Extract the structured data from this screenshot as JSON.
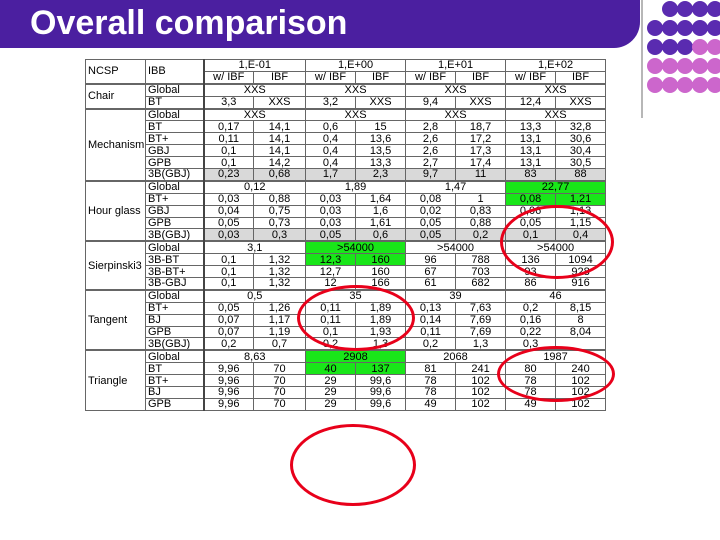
{
  "slide": {
    "title": "Overall comparison"
  },
  "colors": {
    "title_bar": "#4b1fa0",
    "green": "#19e619",
    "oval": "#e8001a",
    "dot_purple": "#5a2bb0",
    "dot_pink": "#cc66cc"
  },
  "table": {
    "h1": [
      "NCSP",
      "IBB",
      "1,E-01",
      "1,E+00",
      "1,E+01",
      "1,E+02"
    ],
    "h2": [
      "w/ IBF",
      "IBF",
      "w/ IBF",
      "IBF",
      "w/ IBF",
      "IBF",
      "w/ IBF",
      "IBF"
    ],
    "groups": [
      {
        "name": "Chair",
        "rows": [
          {
            "cells": [
              "Global",
              "XXS",
              "XXS",
              "XXS",
              "XXS"
            ]
          },
          {
            "cells": [
              "BT",
              "3,3",
              "XXS",
              "3,2",
              "XXS",
              "9,4",
              "XXS",
              "12,4",
              "XXS"
            ]
          }
        ]
      },
      {
        "name": "Mechanism",
        "rows": [
          {
            "cells": [
              "Global",
              "XXS",
              "XXS",
              "XXS",
              "XXS"
            ]
          },
          {
            "cells": [
              "BT",
              "0,17",
              "14,1",
              "0,6",
              "15",
              "2,8",
              "18,7",
              "13,3",
              "32,8"
            ]
          },
          {
            "cells": [
              "BT+",
              "0,11",
              "14,1",
              "0,4",
              "13,6",
              "2,6",
              "17,2",
              "13,1",
              "30,6"
            ]
          },
          {
            "cells": [
              "GBJ",
              "0,1",
              "14,1",
              "0,4",
              "13,5",
              "2,6",
              "17,3",
              "13,1",
              "30,4"
            ]
          },
          {
            "cells": [
              "GPB",
              "0,1",
              "14,2",
              "0,4",
              "13,3",
              "2,7",
              "17,4",
              "13,1",
              "30,5"
            ]
          },
          {
            "cells": [
              "3B(GBJ)",
              "0,23",
              "0,68",
              "1,7",
              "2,3",
              "9,7",
              "11",
              "83",
              "88"
            ]
          }
        ]
      },
      {
        "name": "Hour glass",
        "rows": [
          {
            "cells": [
              "Global",
              "0,12",
              "1,89",
              "1,47",
              "22,77"
            ]
          },
          {
            "cells": [
              "BT+",
              "0,03",
              "0,88",
              "0,03",
              "1,64",
              "0,08",
              "1",
              "0,08",
              "1,21"
            ]
          },
          {
            "cells": [
              "GBJ",
              "0,04",
              "0,75",
              "0,03",
              "1,6",
              "0,02",
              "0,83",
              "0,06",
              "1,13"
            ]
          },
          {
            "cells": [
              "GPB",
              "0,05",
              "0,73",
              "0,03",
              "1,61",
              "0,05",
              "0,88",
              "0,05",
              "1,15"
            ]
          },
          {
            "cells": [
              "3B(GBJ)",
              "0,03",
              "0,3",
              "0,05",
              "0,6",
              "0,05",
              "0,2",
              "0,1",
              "0,4"
            ]
          }
        ]
      },
      {
        "name": "Sierpinski3",
        "rows": [
          {
            "cells": [
              "Global",
              "3,1",
              ">54000",
              ">54000",
              ">54000"
            ]
          },
          {
            "cells": [
              "3B-BT",
              "0,1",
              "1,32",
              "12,3",
              "160",
              "96",
              "788",
              "136",
              "1094"
            ]
          },
          {
            "cells": [
              "3B-BT+",
              "0,1",
              "1,32",
              "12,7",
              "160",
              "67",
              "703",
              "93",
              "928"
            ]
          },
          {
            "cells": [
              "3B-GBJ",
              "0,1",
              "1,32",
              "12",
              "166",
              "61",
              "682",
              "86",
              "916"
            ]
          }
        ]
      },
      {
        "name": "Tangent",
        "rows": [
          {
            "cells": [
              "Global",
              "0,5",
              "35",
              "39",
              "46"
            ]
          },
          {
            "cells": [
              "BT+",
              "0,05",
              "1,26",
              "0,11",
              "1,89",
              "0,13",
              "7,63",
              "0,2",
              "8,15"
            ]
          },
          {
            "cells": [
              "BJ",
              "0,07",
              "1,17",
              "0,11",
              "1,89",
              "0,14",
              "7,69",
              "0,16",
              "8"
            ]
          },
          {
            "cells": [
              "GPB",
              "0,07",
              "1,19",
              "0,1",
              "1,93",
              "0,11",
              "7,69",
              "0,22",
              "8,04"
            ]
          },
          {
            "cells": [
              "3B(GBJ)",
              "0,2",
              "0,7",
              "0,2",
              "1,3",
              "0,2",
              "1,3",
              "0,3",
              ""
            ]
          }
        ]
      },
      {
        "name": "Triangle",
        "rows": [
          {
            "cells": [
              "Global",
              "8,63",
              "2908",
              "2068",
              "1987"
            ]
          },
          {
            "cells": [
              "BT",
              "9,96",
              "70",
              "40",
              "137",
              "81",
              "241",
              "80",
              "240"
            ]
          },
          {
            "cells": [
              "BT+",
              "9,96",
              "70",
              "29",
              "99,6",
              "78",
              "102",
              "78",
              "102"
            ]
          },
          {
            "cells": [
              "BJ",
              "9,96",
              "70",
              "29",
              "99,6",
              "78",
              "102",
              "78",
              "102"
            ]
          },
          {
            "cells": [
              "GPB",
              "9,96",
              "70",
              "29",
              "99,6",
              "49",
              "102",
              "49",
              "102"
            ]
          }
        ]
      }
    ]
  }
}
